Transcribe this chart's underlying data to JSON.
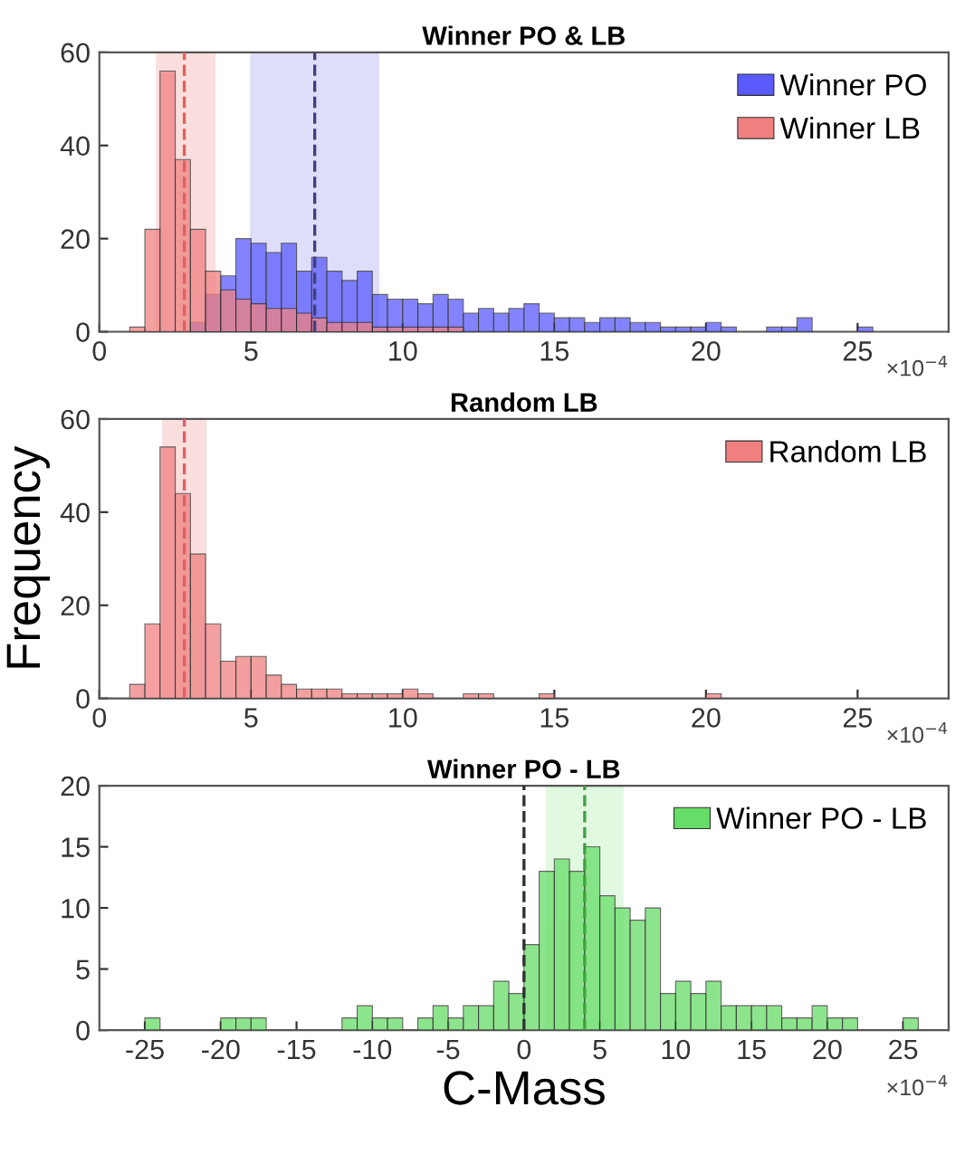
{
  "chart_data": [
    {
      "type": "histogram",
      "title": "Winner PO & LB",
      "legend": "top right",
      "bins": [
        1.0,
        1.5,
        2.0,
        2.5,
        3.0,
        3.5,
        4.0,
        4.5,
        5.0,
        5.5,
        6.0,
        6.5,
        7.0,
        7.5,
        8.0,
        8.5,
        9.0,
        9.5,
        10.0,
        10.5,
        11.0,
        11.5,
        12.0,
        12.5,
        13.0,
        13.5,
        14.0,
        14.5,
        15.0,
        15.5,
        16.0,
        16.5,
        17.0,
        17.5,
        18.0,
        18.5,
        19.0,
        19.5,
        20.0,
        20.5,
        21.0,
        21.5,
        22.0,
        22.5,
        23.0,
        23.5,
        24.0,
        24.5,
        25.0,
        25.5,
        26.0
      ],
      "series": [
        {
          "name": "Winner PO",
          "color": "#5a5aff",
          "values": [
            null,
            null,
            null,
            null,
            2,
            8,
            12,
            20,
            19,
            17,
            19,
            13,
            16,
            13,
            11,
            13,
            8,
            7,
            7,
            6,
            8,
            7,
            4,
            5,
            4,
            5,
            6,
            4,
            3,
            3,
            2,
            3,
            3,
            2,
            2,
            1,
            1,
            1,
            2,
            1,
            null,
            null,
            1,
            1,
            3,
            null,
            null,
            null,
            1,
            null
          ]
        },
        {
          "name": "Winner LB",
          "color": "#f08080",
          "values": [
            1,
            22,
            56,
            37,
            22,
            13,
            9,
            7,
            6,
            5,
            5,
            4,
            3,
            2,
            2,
            2,
            1,
            1,
            1,
            1,
            1,
            1,
            null,
            null,
            null,
            null,
            null,
            null,
            null,
            null,
            null,
            null,
            null,
            null,
            null,
            null,
            null,
            null,
            null,
            null,
            null,
            null,
            null,
            null,
            null,
            null,
            null,
            null,
            null,
            null
          ]
        }
      ],
      "xlim": [
        0,
        28
      ],
      "xticks": [
        0,
        5,
        10,
        15,
        20,
        25
      ],
      "ylim": [
        0,
        60
      ],
      "yticks": [
        0,
        20,
        40,
        60
      ],
      "bands": [
        {
          "axis": "x",
          "from": 1.9,
          "to": 3.8,
          "label": null,
          "color": "#f4a0a0"
        },
        {
          "axis": "x",
          "from": 5.0,
          "to": 9.2,
          "label": null,
          "color": "#a0a0f0"
        }
      ],
      "ref_lines": [
        {
          "axis": "x",
          "value": 2.8,
          "label": null,
          "color": "#e06060",
          "line_style": "dashed"
        },
        {
          "axis": "x",
          "value": 7.1,
          "label": null,
          "color": "#404080",
          "line_style": "dashed"
        }
      ],
      "annotations": [
        "×10$^{−4}$"
      ]
    },
    {
      "type": "histogram",
      "title": "Random LB",
      "legend": "top right",
      "ylabel": "Frequency",
      "bins": [
        1.0,
        1.5,
        2.0,
        2.5,
        3.0,
        3.5,
        4.0,
        4.5,
        5.0,
        5.5,
        6.0,
        6.5,
        7.0,
        7.5,
        8.0,
        8.5,
        9.0,
        9.5,
        10.0,
        10.5,
        11.0,
        11.5,
        12.0,
        12.5,
        13.0,
        13.5,
        14.0,
        14.5,
        15.0,
        15.5,
        16.0,
        16.5,
        17.0,
        17.5,
        18.0,
        18.5,
        19.0,
        19.5,
        20.0,
        20.5,
        21.0
      ],
      "series": [
        {
          "name": "Random LB",
          "color": "#f08080",
          "values": [
            3,
            16,
            54,
            44,
            31,
            16,
            8,
            9,
            9,
            5,
            3,
            2,
            2,
            2,
            1,
            1,
            1,
            1,
            2,
            1,
            null,
            null,
            1,
            1,
            null,
            null,
            null,
            1,
            null,
            null,
            null,
            null,
            null,
            null,
            null,
            null,
            null,
            null,
            1,
            null
          ]
        }
      ],
      "xlim": [
        0,
        28
      ],
      "xticks": [
        0,
        5,
        10,
        15,
        20,
        25
      ],
      "ylim": [
        0,
        60
      ],
      "yticks": [
        0,
        20,
        40,
        60
      ],
      "bands": [
        {
          "axis": "x",
          "from": 2.1,
          "to": 3.5,
          "label": null,
          "color": "#f4a0a0"
        }
      ],
      "ref_lines": [
        {
          "axis": "x",
          "value": 2.8,
          "label": null,
          "color": "#e06060",
          "line_style": "dashed"
        }
      ],
      "annotations": [
        "×10$^{−4}$"
      ]
    },
    {
      "type": "histogram",
      "title": "Winner PO - LB",
      "legend": "top right",
      "xlabel": "C-Mass",
      "bins": [
        -26,
        -25,
        -24,
        -23,
        -22,
        -21,
        -20,
        -19,
        -18,
        -17,
        -16,
        -15,
        -14,
        -13,
        -12,
        -11,
        -10,
        -9,
        -8,
        -7,
        -6,
        -5,
        -4,
        -3,
        -2,
        -1,
        0,
        1,
        2,
        3,
        4,
        5,
        6,
        7,
        8,
        9,
        10,
        11,
        12,
        13,
        14,
        15,
        16,
        17,
        18,
        19,
        20,
        21,
        22,
        23,
        24,
        25,
        26,
        27
      ],
      "series": [
        {
          "name": "Winner PO - LB",
          "color": "#66dd66",
          "values": [
            null,
            1,
            null,
            null,
            null,
            null,
            1,
            1,
            1,
            null,
            null,
            null,
            null,
            null,
            1,
            2,
            1,
            1,
            null,
            1,
            2,
            1,
            2,
            2,
            4,
            3,
            7,
            13,
            14,
            13,
            15,
            11,
            10,
            9,
            10,
            3,
            4,
            3,
            4,
            2,
            2,
            2,
            2,
            1,
            1,
            2,
            1,
            1,
            null,
            null,
            null,
            1,
            null
          ]
        }
      ],
      "xlim": [
        -28,
        28
      ],
      "xticks": [
        -25,
        -20,
        -15,
        -10,
        -5,
        0,
        5,
        10,
        15,
        20,
        25
      ],
      "ylim": [
        0,
        20
      ],
      "yticks": [
        0,
        5,
        10,
        15,
        20
      ],
      "bands": [
        {
          "axis": "x",
          "from": 1.5,
          "to": 6.5,
          "label": null,
          "color": "#a8eea8"
        }
      ],
      "ref_lines": [
        {
          "axis": "x",
          "value": 0,
          "label": null,
          "color": "#303030",
          "line_style": "dashed"
        },
        {
          "axis": "x",
          "value": 4.0,
          "label": null,
          "color": "#40a040",
          "line_style": "dashed"
        }
      ],
      "annotations": [
        "×10$^{−4}$"
      ]
    }
  ]
}
